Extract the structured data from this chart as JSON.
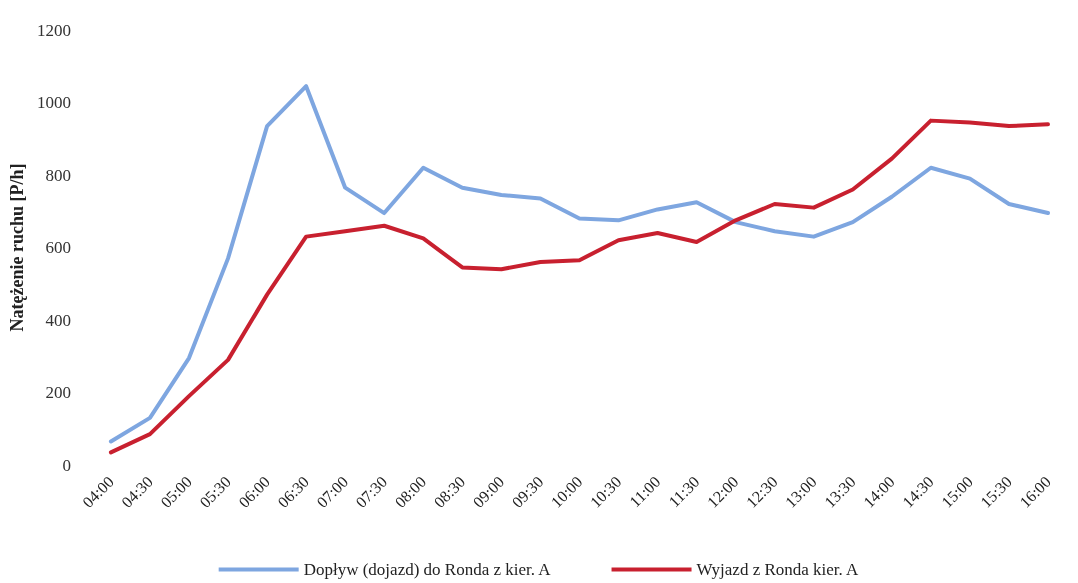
{
  "chart_data": {
    "type": "line",
    "ylabel": "Natężenie ruchu [P/h]",
    "categories": [
      "04:00",
      "04:30",
      "05:00",
      "05:30",
      "06:00",
      "06:30",
      "07:00",
      "07:30",
      "08:00",
      "08:30",
      "09:00",
      "09:30",
      "10:00",
      "10:30",
      "11:00",
      "11:30",
      "12:00",
      "12:30",
      "13:00",
      "13:30",
      "14:00",
      "14:30",
      "15:00",
      "15:30",
      "16:00"
    ],
    "series": [
      {
        "name": "Dopływ (dojazd) do Ronda z kier. A",
        "color": "#7ea6e0",
        "values": [
          65,
          130,
          295,
          570,
          935,
          1045,
          765,
          695,
          820,
          765,
          745,
          735,
          680,
          675,
          705,
          725,
          670,
          645,
          630,
          670,
          740,
          820,
          790,
          720,
          695
        ]
      },
      {
        "name": "Wyjazd z Ronda kier. A",
        "color": "#c8202f",
        "values": [
          35,
          85,
          190,
          290,
          470,
          630,
          645,
          660,
          625,
          545,
          540,
          560,
          565,
          620,
          640,
          615,
          675,
          720,
          710,
          760,
          845,
          950,
          945,
          935,
          940
        ]
      }
    ],
    "ylim": [
      0,
      1200
    ],
    "yticks": [
      0,
      200,
      400,
      600,
      800,
      1000,
      1200
    ],
    "grid": false,
    "legend": "bottom",
    "marker": "none",
    "line_style": "solid"
  }
}
